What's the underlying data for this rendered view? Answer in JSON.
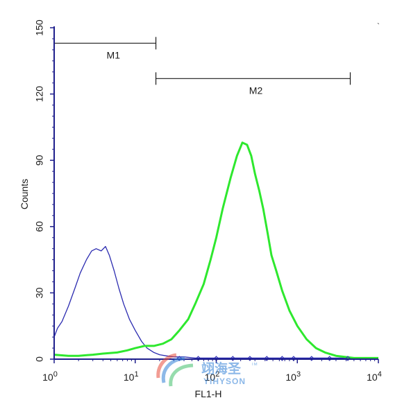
{
  "chart_data": {
    "type": "line",
    "xlabel": "FL1-H",
    "ylabel": "Counts",
    "x_scale": "log",
    "xlim": [
      1,
      10000
    ],
    "ylim": [
      0,
      150
    ],
    "x_ticks": [
      {
        "value": 1,
        "base": "10",
        "exp": "0"
      },
      {
        "value": 10,
        "base": "10",
        "exp": "1"
      },
      {
        "value": 100,
        "base": "10",
        "exp": "2"
      },
      {
        "value": 1000,
        "base": "10",
        "exp": "3"
      },
      {
        "value": 10000,
        "base": "10",
        "exp": "4"
      }
    ],
    "y_ticks": [
      {
        "value": 0,
        "label": "0"
      },
      {
        "value": 30,
        "label": "30"
      },
      {
        "value": 60,
        "label": "60"
      },
      {
        "value": 90,
        "label": "90"
      },
      {
        "value": 120,
        "label": "120"
      },
      {
        "value": 150,
        "label": "150"
      }
    ],
    "markers": [
      {
        "label": "M1",
        "x_start": 1,
        "x_end": 18,
        "level": 143
      },
      {
        "label": "M2",
        "x_start": 18,
        "x_end": 4500,
        "level": 127
      }
    ],
    "series": [
      {
        "color": "#2b2bb0",
        "x": [
          1,
          1.1,
          1.25,
          1.5,
          1.8,
          2.1,
          2.5,
          2.9,
          3.3,
          3.8,
          4.3,
          4.8,
          5.5,
          6.3,
          7.2,
          8.5,
          10,
          12,
          14,
          17,
          20,
          24,
          30,
          40,
          55,
          80,
          120,
          200,
          400,
          1000,
          3000,
          10000
        ],
        "y": [
          10,
          14,
          17,
          24,
          32,
          39,
          45,
          49,
          50,
          49,
          51,
          47,
          40,
          32,
          25,
          18,
          13,
          8,
          5,
          3,
          2,
          1.5,
          1,
          1,
          0.5,
          0.5,
          0.5,
          0.5,
          0.5,
          0.5,
          0.5,
          0.5
        ]
      },
      {
        "color": "#2ee82e",
        "x": [
          1,
          1.5,
          2,
          3,
          4,
          6,
          8,
          10,
          13,
          17,
          22,
          28,
          35,
          45,
          55,
          70,
          85,
          100,
          120,
          150,
          180,
          210,
          240,
          270,
          300,
          340,
          380,
          430,
          480,
          550,
          650,
          800,
          1000,
          1300,
          1700,
          2200,
          3000,
          5000,
          10000
        ],
        "y": [
          2,
          1.5,
          1.5,
          2,
          2.5,
          3,
          4,
          5,
          6,
          6,
          7,
          9,
          13,
          18,
          25,
          34,
          45,
          55,
          68,
          82,
          92,
          98,
          97,
          92,
          84,
          76,
          68,
          57,
          47,
          40,
          31,
          22,
          15,
          9,
          5,
          3,
          1.5,
          0.5,
          0.5
        ]
      }
    ]
  },
  "watermark": {
    "chinese": "翊海圣",
    "english": "YIHYSON",
    "tm": "TM"
  },
  "colors": {
    "axis": "#1e1e8c",
    "blue_series": "#2b2bb0",
    "green_series": "#2ee82e",
    "marker": "#1a1a1a",
    "watermark": "#2f7fd6"
  }
}
